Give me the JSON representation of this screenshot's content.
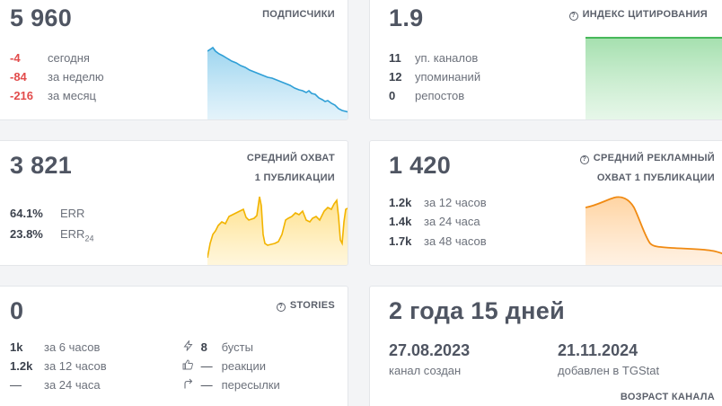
{
  "subscribers": {
    "value": "5 960",
    "title": "ПОДПИСЧИКИ",
    "rows": [
      {
        "value": "-4",
        "label": "сегодня"
      },
      {
        "value": "-84",
        "label": "за неделю"
      },
      {
        "value": "-216",
        "label": "за месяц"
      }
    ],
    "color": "#36a3d8"
  },
  "citation": {
    "value": "1.9",
    "title": "ИНДЕКС ЦИТИРОВАНИЯ",
    "rows": [
      {
        "value": "11",
        "label": "уп. каналов"
      },
      {
        "value": "12",
        "label": "упоминаний"
      },
      {
        "value": "0",
        "label": "репостов"
      }
    ],
    "color": "#3bb54a"
  },
  "reach": {
    "value": "3 821",
    "title_line1": "СРЕДНИЙ ОХВАТ",
    "title_line2": "1 ПУБЛИКАЦИИ",
    "err_value": "64.1%",
    "err_label": "ERR",
    "err24_value": "23.8%",
    "err24_label": "ERR",
    "err24_sub": "24",
    "color": "#f5b800"
  },
  "ad_reach": {
    "value": "1 420",
    "title_line1": "СРЕДНИЙ РЕКЛАМНЫЙ",
    "title_line2": "ОХВАТ 1 ПУБЛИКАЦИИ",
    "rows": [
      {
        "value": "1.2k",
        "label": "за 12 часов"
      },
      {
        "value": "1.4k",
        "label": "за 24 часа"
      },
      {
        "value": "1.7k",
        "label": "за 48 часов"
      }
    ],
    "color": "#f08a12"
  },
  "stories": {
    "value": "0",
    "title": "STORIES",
    "rows": [
      {
        "value": "1k",
        "label": "за 6 часов"
      },
      {
        "value": "1.2k",
        "label": "за 12 часов"
      },
      {
        "value": "—",
        "label": "за 24 часа"
      }
    ],
    "right_rows": [
      {
        "icon": "lightning-icon",
        "value": "8",
        "label": "бусты"
      },
      {
        "icon": "thumbs-up-icon",
        "value": "—",
        "label": "реакции"
      },
      {
        "icon": "forward-arrow-icon",
        "value": "—",
        "label": "пересылки"
      }
    ]
  },
  "age": {
    "value": "2 года 15 дней",
    "created_date": "27.08.2023",
    "created_label": "канал создан",
    "added_date": "21.11.2024",
    "added_label": "добавлен в TGStat",
    "title": "ВОЗРАСТ КАНАЛА"
  }
}
